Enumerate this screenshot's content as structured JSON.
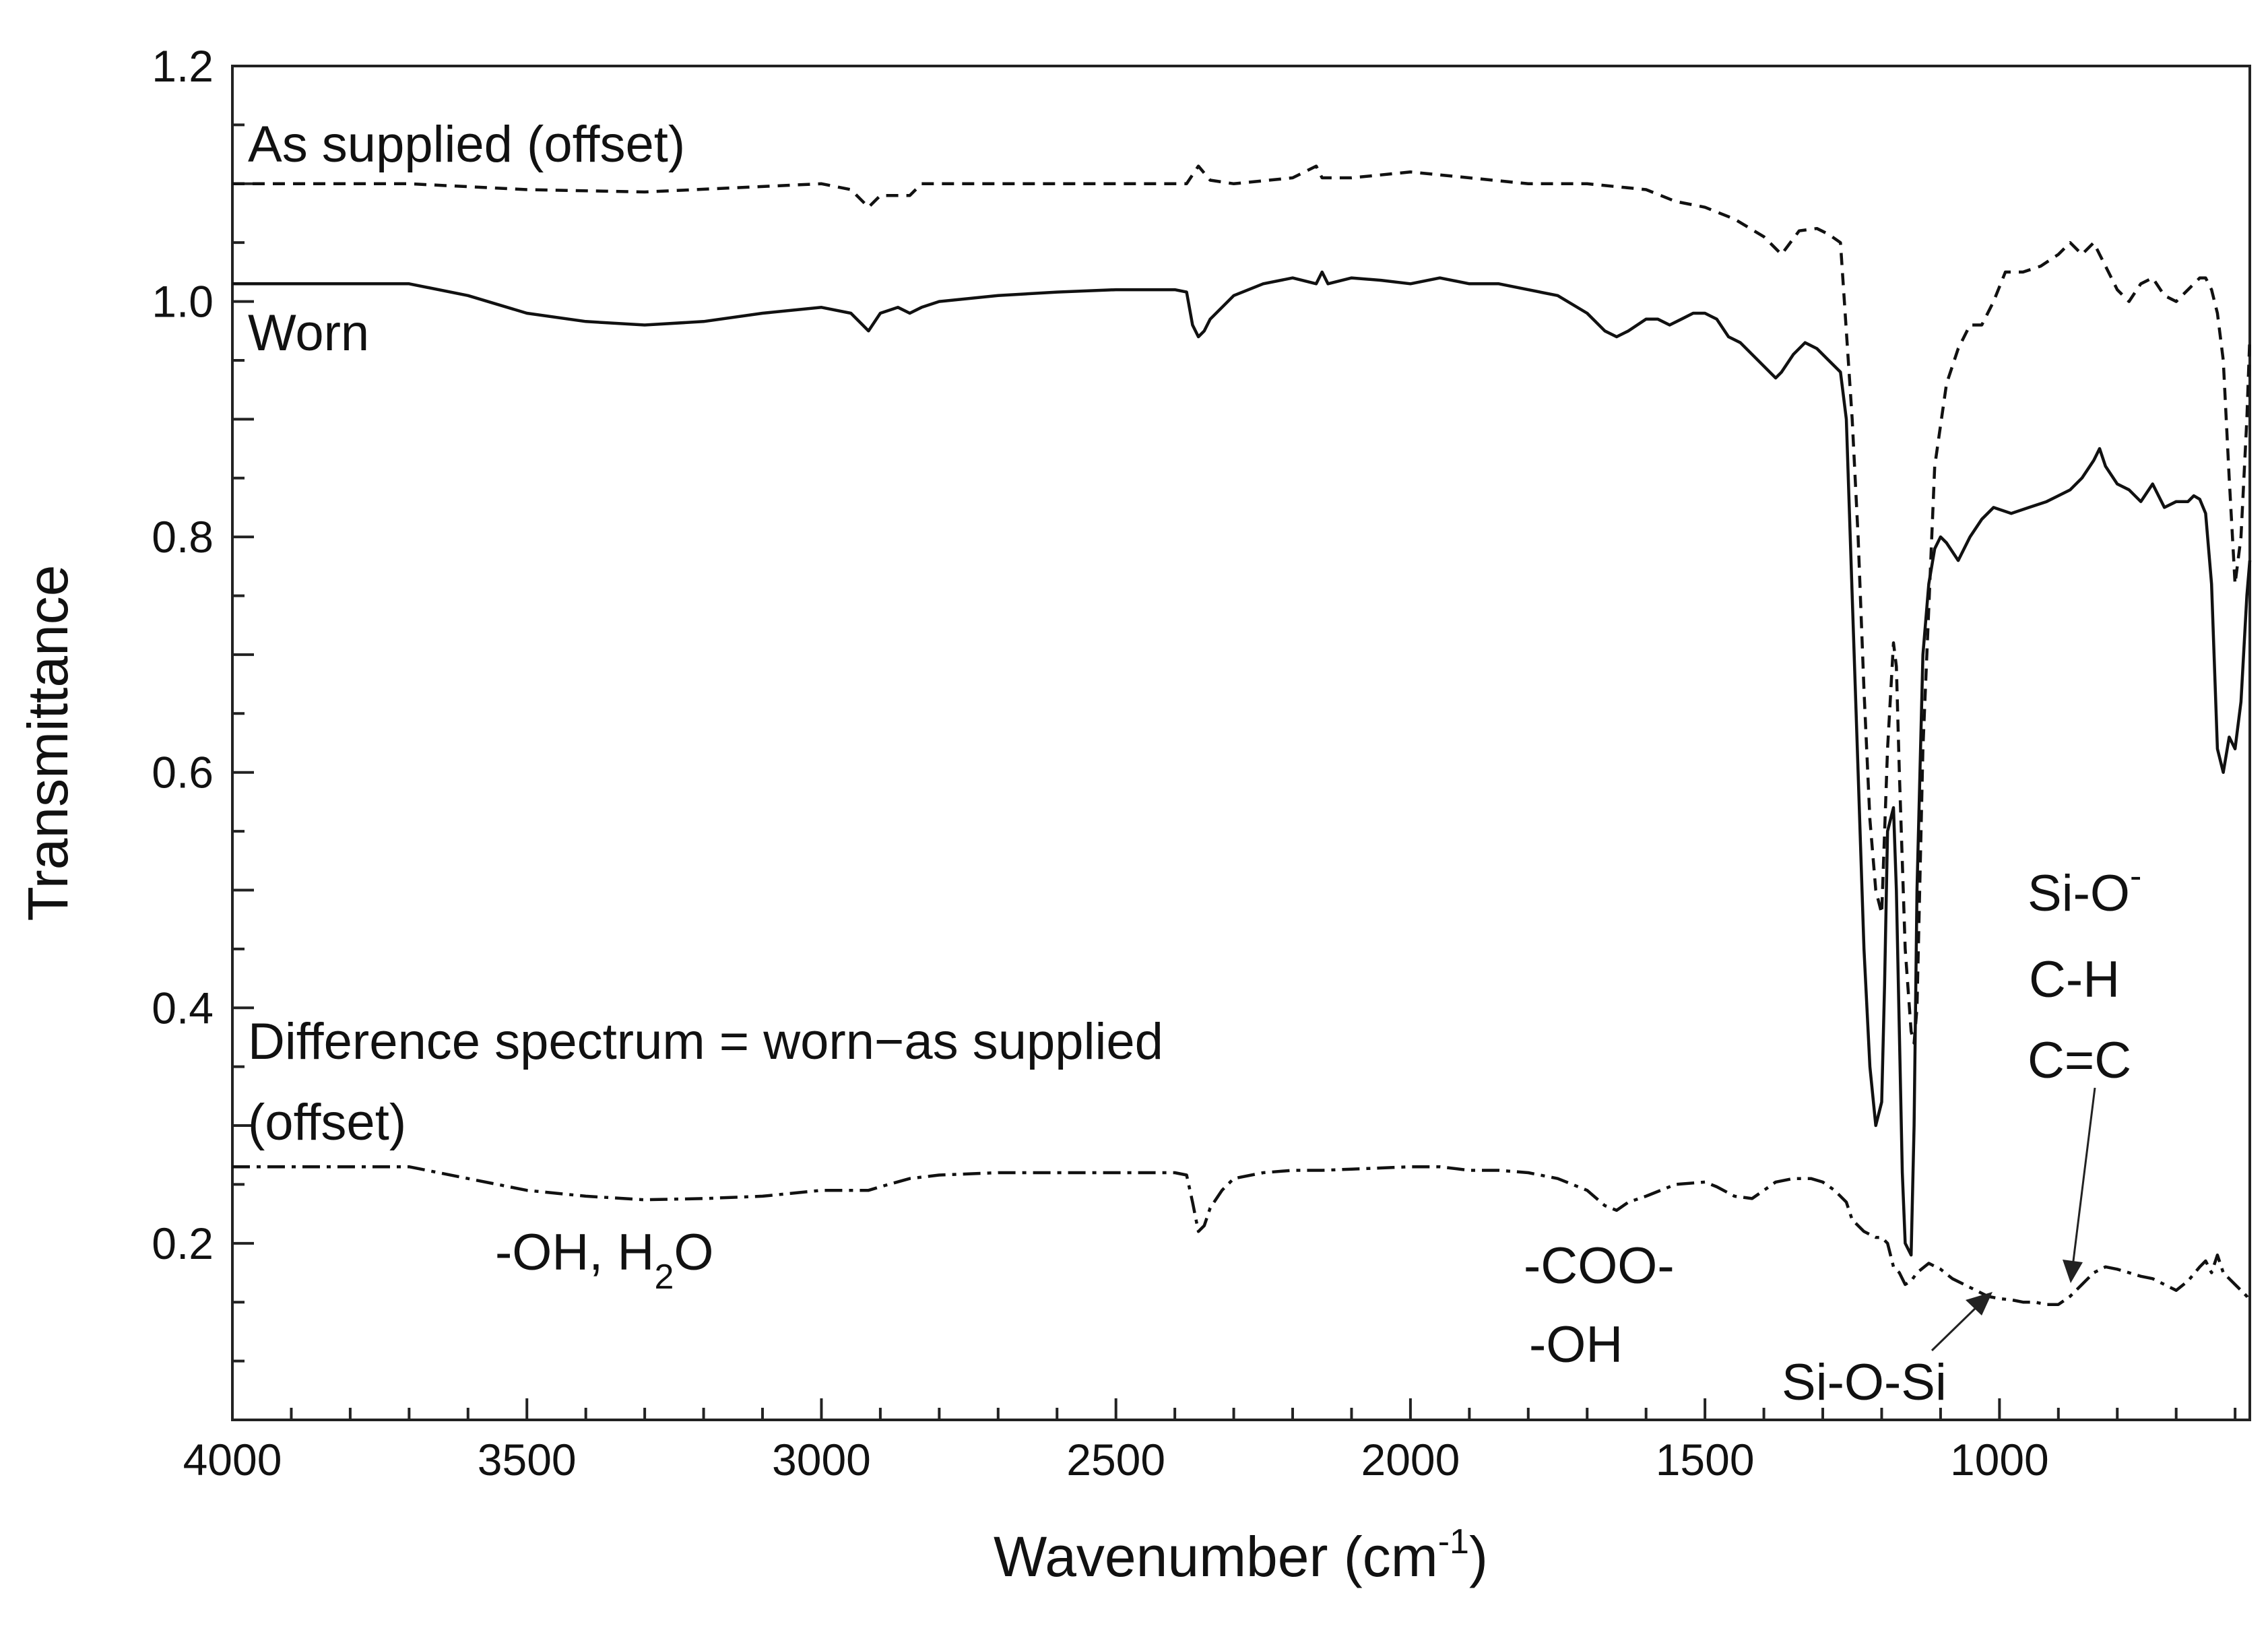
{
  "chart_data": {
    "type": "line",
    "title": "",
    "xlabel": "Wavenumber (cm",
    "xlabel_sup": "-1",
    "xlabel_end": ")",
    "ylabel": "Transmittance",
    "xlim": [
      4000,
      575
    ],
    "ylim": [
      0.05,
      1.2
    ],
    "xticks": [
      4000,
      3500,
      3000,
      2500,
      2000,
      1500,
      1000
    ],
    "xtick_labels": [
      "4000",
      "3500",
      "3000",
      "2500",
      "2000",
      "1500",
      "1000"
    ],
    "yticks": [
      0.2,
      0.4,
      0.6,
      0.8,
      1.0,
      1.2
    ],
    "ytick_labels": [
      "0.2",
      "0.4",
      "0.6",
      "0.8",
      "1.0",
      "1.2"
    ],
    "grid": false,
    "series": [
      {
        "name": "As supplied (offset)",
        "dash": "dashed",
        "x": [
          4000,
          3700,
          3500,
          3300,
          3000,
          2950,
          2920,
          2900,
          2850,
          2830,
          2800,
          2500,
          2380,
          2360,
          2340,
          2300,
          2200,
          2160,
          2150,
          2100,
          2000,
          1900,
          1800,
          1700,
          1600,
          1550,
          1500,
          1450,
          1400,
          1370,
          1340,
          1310,
          1290,
          1270,
          1250,
          1240,
          1230,
          1220,
          1210,
          1200,
          1190,
          1180,
          1175,
          1170,
          1160,
          1150,
          1145,
          1140,
          1130,
          1110,
          1090,
          1070,
          1050,
          1030,
          1010,
          990,
          960,
          930,
          900,
          880,
          860,
          840,
          830,
          820,
          800,
          780,
          760,
          740,
          720,
          700,
          680,
          660,
          650,
          640,
          630,
          620,
          610,
          600,
          590,
          580,
          575
        ],
        "y": [
          1.1,
          1.1,
          1.095,
          1.093,
          1.1,
          1.095,
          1.08,
          1.09,
          1.09,
          1.1,
          1.1,
          1.1,
          1.1,
          1.115,
          1.103,
          1.1,
          1.105,
          1.115,
          1.105,
          1.105,
          1.11,
          1.105,
          1.1,
          1.1,
          1.095,
          1.085,
          1.08,
          1.07,
          1.055,
          1.04,
          1.06,
          1.062,
          1.057,
          1.05,
          0.9,
          0.8,
          0.67,
          0.56,
          0.5,
          0.48,
          0.62,
          0.71,
          0.69,
          0.6,
          0.45,
          0.38,
          0.37,
          0.4,
          0.62,
          0.86,
          0.93,
          0.96,
          0.98,
          0.98,
          1.0,
          1.025,
          1.025,
          1.03,
          1.04,
          1.05,
          1.04,
          1.05,
          1.04,
          1.03,
          1.01,
          1.0,
          1.015,
          1.02,
          1.005,
          1.0,
          1.01,
          1.02,
          1.02,
          1.01,
          0.99,
          0.95,
          0.85,
          0.76,
          0.8,
          0.9,
          0.97
        ]
      },
      {
        "name": "Worn",
        "dash": "solid",
        "x": [
          4000,
          3700,
          3600,
          3500,
          3400,
          3300,
          3200,
          3100,
          3000,
          2950,
          2930,
          2920,
          2900,
          2870,
          2850,
          2830,
          2800,
          2700,
          2600,
          2500,
          2400,
          2380,
          2370,
          2360,
          2350,
          2340,
          2320,
          2300,
          2250,
          2200,
          2160,
          2150,
          2140,
          2100,
          2050,
          2000,
          1950,
          1900,
          1850,
          1800,
          1750,
          1700,
          1670,
          1650,
          1630,
          1600,
          1580,
          1560,
          1540,
          1520,
          1500,
          1480,
          1460,
          1440,
          1420,
          1400,
          1380,
          1370,
          1350,
          1330,
          1310,
          1290,
          1270,
          1260,
          1250,
          1240,
          1230,
          1220,
          1210,
          1200,
          1195,
          1190,
          1180,
          1175,
          1170,
          1165,
          1160,
          1150,
          1145,
          1140,
          1130,
          1120,
          1110,
          1100,
          1090,
          1070,
          1050,
          1030,
          1010,
          980,
          950,
          920,
          900,
          880,
          860,
          840,
          830,
          820,
          800,
          780,
          760,
          740,
          720,
          700,
          680,
          670,
          660,
          650,
          640,
          630,
          620,
          610,
          600,
          590,
          580,
          575
        ],
        "y": [
          1.015,
          1.015,
          1.005,
          0.99,
          0.983,
          0.98,
          0.983,
          0.99,
          0.995,
          0.99,
          0.98,
          0.975,
          0.99,
          0.995,
          0.99,
          0.995,
          1.0,
          1.005,
          1.008,
          1.01,
          1.01,
          1.008,
          0.98,
          0.97,
          0.975,
          0.985,
          0.995,
          1.005,
          1.015,
          1.02,
          1.015,
          1.025,
          1.015,
          1.02,
          1.018,
          1.015,
          1.02,
          1.015,
          1.015,
          1.01,
          1.005,
          0.99,
          0.975,
          0.97,
          0.975,
          0.985,
          0.985,
          0.98,
          0.985,
          0.99,
          0.99,
          0.985,
          0.97,
          0.965,
          0.955,
          0.945,
          0.935,
          0.94,
          0.955,
          0.965,
          0.96,
          0.95,
          0.94,
          0.9,
          0.75,
          0.6,
          0.45,
          0.35,
          0.3,
          0.32,
          0.42,
          0.55,
          0.57,
          0.5,
          0.38,
          0.26,
          0.2,
          0.19,
          0.3,
          0.5,
          0.7,
          0.76,
          0.79,
          0.8,
          0.795,
          0.78,
          0.8,
          0.815,
          0.825,
          0.82,
          0.825,
          0.83,
          0.835,
          0.84,
          0.85,
          0.865,
          0.875,
          0.86,
          0.845,
          0.84,
          0.83,
          0.845,
          0.825,
          0.83,
          0.83,
          0.835,
          0.832,
          0.82,
          0.76,
          0.62,
          0.6,
          0.63,
          0.62,
          0.66,
          0.75,
          0.78
        ]
      },
      {
        "name": "Difference spectrum = worn−as supplied (offset)",
        "dash": "dash-dot",
        "x": [
          4000,
          3700,
          3600,
          3500,
          3400,
          3300,
          3200,
          3100,
          3000,
          2950,
          2920,
          2900,
          2850,
          2800,
          2700,
          2600,
          2500,
          2400,
          2380,
          2370,
          2360,
          2350,
          2340,
          2320,
          2300,
          2250,
          2200,
          2150,
          2100,
          2050,
          2000,
          1950,
          1900,
          1850,
          1800,
          1750,
          1700,
          1670,
          1650,
          1630,
          1600,
          1550,
          1500,
          1480,
          1450,
          1420,
          1400,
          1380,
          1350,
          1320,
          1300,
          1280,
          1260,
          1250,
          1230,
          1210,
          1200,
          1190,
          1180,
          1170,
          1160,
          1150,
          1140,
          1120,
          1100,
          1080,
          1060,
          1040,
          1020,
          1000,
          980,
          960,
          940,
          920,
          900,
          880,
          860,
          840,
          820,
          800,
          780,
          760,
          740,
          720,
          700,
          680,
          660,
          650,
          640,
          630,
          620,
          610,
          600,
          590,
          580,
          575
        ],
        "y": [
          0.265,
          0.265,
          0.255,
          0.245,
          0.24,
          0.237,
          0.238,
          0.24,
          0.245,
          0.245,
          0.245,
          0.248,
          0.255,
          0.258,
          0.26,
          0.26,
          0.26,
          0.26,
          0.258,
          0.235,
          0.21,
          0.215,
          0.23,
          0.245,
          0.255,
          0.26,
          0.262,
          0.262,
          0.263,
          0.264,
          0.265,
          0.265,
          0.262,
          0.262,
          0.26,
          0.255,
          0.245,
          0.232,
          0.228,
          0.235,
          0.24,
          0.25,
          0.252,
          0.248,
          0.24,
          0.238,
          0.245,
          0.252,
          0.255,
          0.255,
          0.252,
          0.245,
          0.235,
          0.22,
          0.21,
          0.205,
          0.205,
          0.2,
          0.18,
          0.175,
          0.165,
          0.168,
          0.175,
          0.183,
          0.178,
          0.17,
          0.165,
          0.16,
          0.155,
          0.153,
          0.152,
          0.15,
          0.15,
          0.148,
          0.148,
          0.155,
          0.165,
          0.175,
          0.18,
          0.178,
          0.175,
          0.172,
          0.17,
          0.165,
          0.16,
          0.168,
          0.18,
          0.185,
          0.175,
          0.19,
          0.175,
          0.17,
          0.165,
          0.16,
          0.155,
          0.15
        ]
      }
    ],
    "annotations": {
      "as_supplied": "As supplied (offset)",
      "worn": "Worn",
      "difference_line1": "Difference spectrum = worn−as supplied",
      "difference_line2": "(offset)",
      "oh_h2o_prefix": "-OH, H",
      "oh_h2o_sub": "2",
      "oh_h2o_suffix": "O",
      "coo": "-COO-",
      "oh": "-OH",
      "si_o_si": "Si-O-Si",
      "si_o": "Si-O",
      "si_o_sup": "-",
      "c_h": "C-H",
      "c_c": "C=C"
    }
  }
}
